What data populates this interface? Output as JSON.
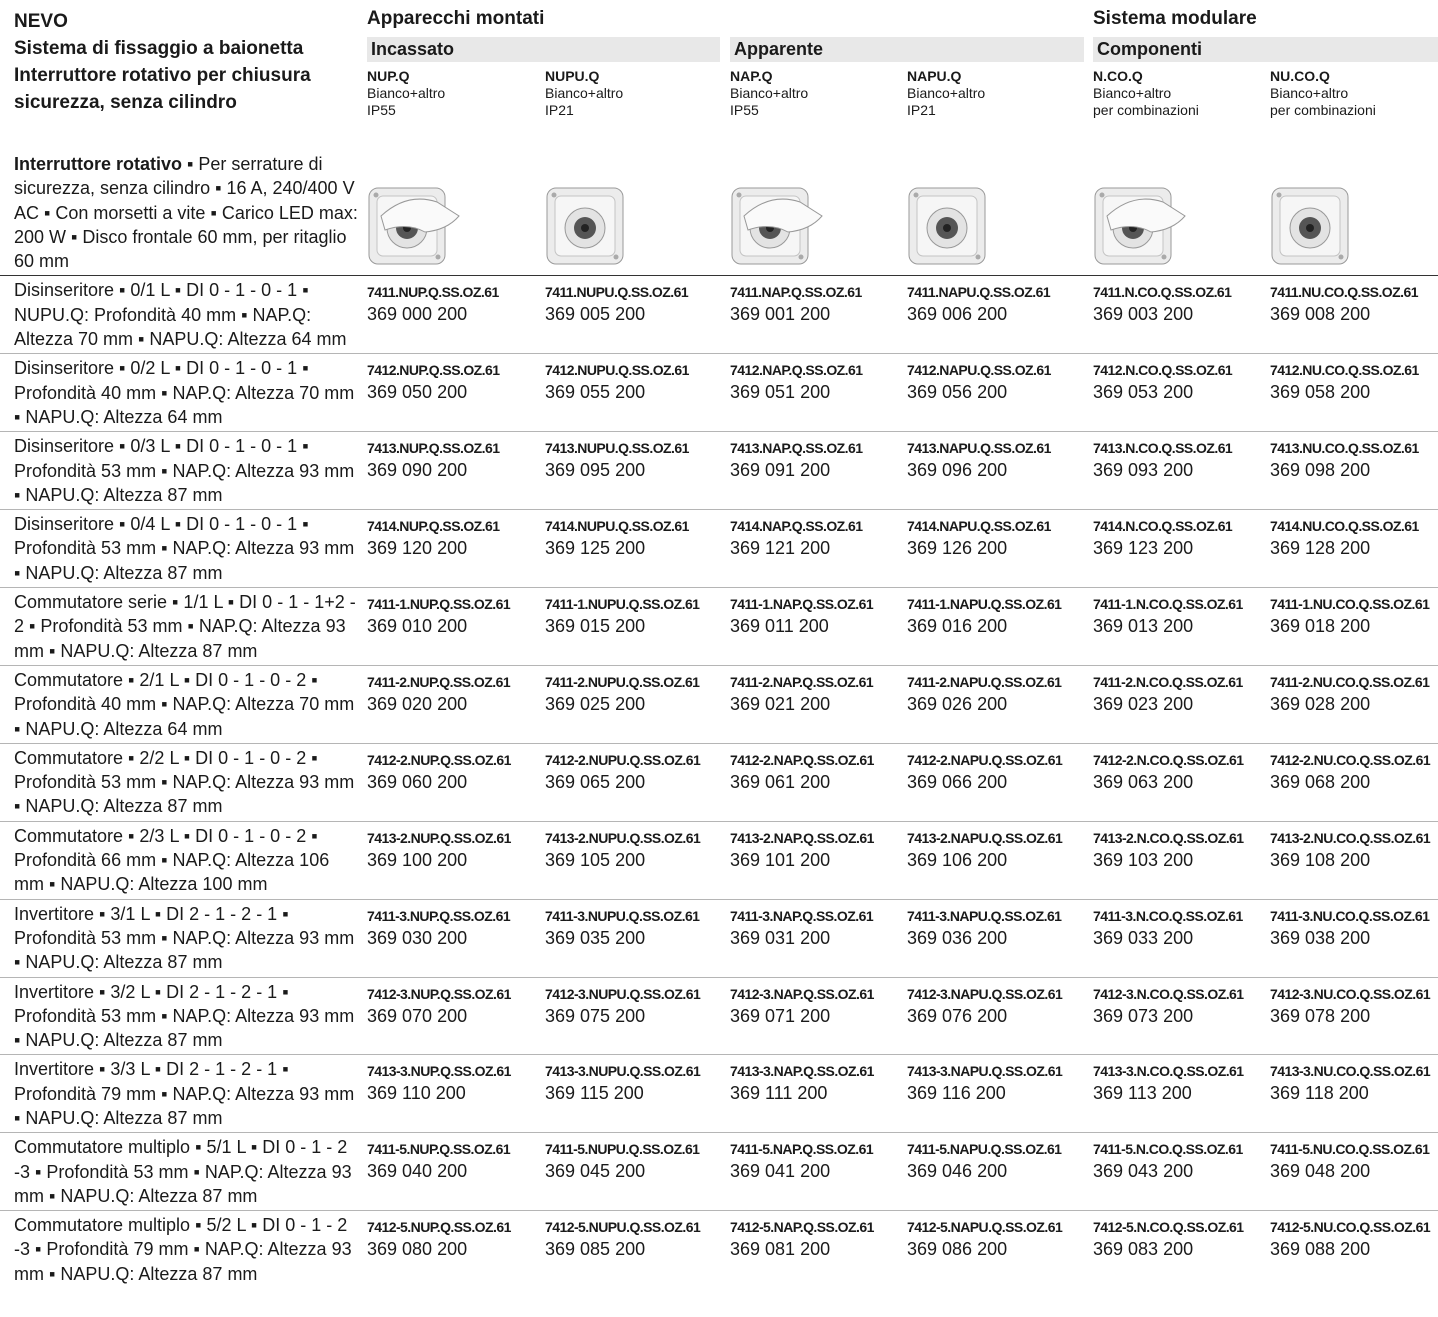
{
  "header": {
    "title": "NEVO",
    "subtitle_lines": [
      "Sistema di fissaggio a baionetta",
      "Interruttore rotativo per chiusura",
      "sicurezza, senza cilindro"
    ]
  },
  "groups": [
    {
      "title": "Apparecchi montati",
      "subgroups": [
        "Incassato",
        "Apparente"
      ]
    },
    {
      "title": "Sistema modulare",
      "subgroups": [
        "Componenti"
      ]
    }
  ],
  "columns": [
    {
      "name": "NUP.Q",
      "lines": [
        "Bianco+altro",
        "IP55"
      ]
    },
    {
      "name": "NUPU.Q",
      "lines": [
        "Bianco+altro",
        "IP21"
      ]
    },
    {
      "name": "NAP.Q",
      "lines": [
        "Bianco+altro",
        "IP55"
      ]
    },
    {
      "name": "NAPU.Q",
      "lines": [
        "Bianco+altro",
        "IP21"
      ]
    },
    {
      "name": "N.CO.Q",
      "lines": [
        "Bianco+altro",
        "per combinazioni"
      ]
    },
    {
      "name": "NU.CO.Q",
      "lines": [
        "Bianco+altro",
        "per combinazioni"
      ]
    }
  ],
  "intro": {
    "title": "Interruttore rotativo",
    "text": "▪ Per serrature di sicurezza, senza cilindro ▪ 16 A, 240/400 V AC ▪ Con morsetti a vite ▪ Carico LED max: 200 W ▪ Disco frontale 60 mm, per ritaglio 60 mm"
  },
  "rows": [
    {
      "description": "Disinseritore ▪ 0/1 L ▪ DI 0 - 1 - 0 - 1 ▪ NUPU.Q: Profondità 40 mm ▪ NAP.Q: Altezza 70 mm ▪ NAPU.Q: Altezza 64 mm",
      "items": [
        {
          "code": "7411.NUP.Q.SS.OZ.61",
          "number": "369 000 200"
        },
        {
          "code": "7411.NUPU.Q.SS.OZ.61",
          "number": "369 005 200"
        },
        {
          "code": "7411.NAP.Q.SS.OZ.61",
          "number": "369 001 200"
        },
        {
          "code": "7411.NAPU.Q.SS.OZ.61",
          "number": "369 006 200"
        },
        {
          "code": "7411.N.CO.Q.SS.OZ.61",
          "number": "369 003 200"
        },
        {
          "code": "7411.NU.CO.Q.SS.OZ.61",
          "number": "369 008 200"
        }
      ]
    },
    {
      "description": "Disinseritore ▪ 0/2 L ▪ DI 0 - 1 - 0 - 1 ▪ Profondità 40 mm ▪ NAP.Q: Altezza 70 mm ▪ NAPU.Q: Altezza 64 mm",
      "items": [
        {
          "code": "7412.NUP.Q.SS.OZ.61",
          "number": "369 050 200"
        },
        {
          "code": "7412.NUPU.Q.SS.OZ.61",
          "number": "369 055 200"
        },
        {
          "code": "7412.NAP.Q.SS.OZ.61",
          "number": "369 051 200"
        },
        {
          "code": "7412.NAPU.Q.SS.OZ.61",
          "number": "369 056 200"
        },
        {
          "code": "7412.N.CO.Q.SS.OZ.61",
          "number": "369 053 200"
        },
        {
          "code": "7412.NU.CO.Q.SS.OZ.61",
          "number": "369 058 200"
        }
      ]
    },
    {
      "description": "Disinseritore ▪ 0/3 L ▪ DI 0 - 1 - 0 - 1 ▪ Profondità 53 mm ▪ NAP.Q: Altezza 93 mm ▪ NAPU.Q: Altezza 87 mm",
      "items": [
        {
          "code": "7413.NUP.Q.SS.OZ.61",
          "number": "369 090 200"
        },
        {
          "code": "7413.NUPU.Q.SS.OZ.61",
          "number": "369 095 200"
        },
        {
          "code": "7413.NAP.Q.SS.OZ.61",
          "number": "369 091 200"
        },
        {
          "code": "7413.NAPU.Q.SS.OZ.61",
          "number": "369 096 200"
        },
        {
          "code": "7413.N.CO.Q.SS.OZ.61",
          "number": "369 093 200"
        },
        {
          "code": "7413.NU.CO.Q.SS.OZ.61",
          "number": "369 098 200"
        }
      ]
    },
    {
      "description": "Disinseritore ▪ 0/4 L ▪ DI 0 - 1 - 0 - 1 ▪ Profondità 53 mm ▪ NAP.Q: Altezza 93 mm ▪ NAPU.Q: Altezza 87 mm",
      "items": [
        {
          "code": "7414.NUP.Q.SS.OZ.61",
          "number": "369 120 200"
        },
        {
          "code": "7414.NUPU.Q.SS.OZ.61",
          "number": "369 125 200"
        },
        {
          "code": "7414.NAP.Q.SS.OZ.61",
          "number": "369 121 200"
        },
        {
          "code": "7414.NAPU.Q.SS.OZ.61",
          "number": "369 126 200"
        },
        {
          "code": "7414.N.CO.Q.SS.OZ.61",
          "number": "369 123 200"
        },
        {
          "code": "7414.NU.CO.Q.SS.OZ.61",
          "number": "369 128 200"
        }
      ]
    },
    {
      "description": "Commutatore serie ▪ 1/1 L ▪ DI 0 - 1 - 1+2 - 2 ▪ Profondità 53 mm ▪ NAP.Q: Altezza 93 mm ▪ NAPU.Q: Altezza 87 mm",
      "items": [
        {
          "code": "7411-1.NUP.Q.SS.OZ.61",
          "number": "369 010 200"
        },
        {
          "code": "7411-1.NUPU.Q.SS.OZ.61",
          "number": "369 015 200"
        },
        {
          "code": "7411-1.NAP.Q.SS.OZ.61",
          "number": "369 011 200"
        },
        {
          "code": "7411-1.NAPU.Q.SS.OZ.61",
          "number": "369 016 200"
        },
        {
          "code": "7411-1.N.CO.Q.SS.OZ.61",
          "number": "369 013 200"
        },
        {
          "code": "7411-1.NU.CO.Q.SS.OZ.61",
          "number": "369 018 200"
        }
      ]
    },
    {
      "description": "Commutatore ▪ 2/1 L ▪ DI 0 - 1 - 0 - 2 ▪ Profondità 40 mm ▪ NAP.Q: Altezza 70 mm ▪ NAPU.Q: Altezza 64 mm",
      "items": [
        {
          "code": "7411-2.NUP.Q.SS.OZ.61",
          "number": "369 020 200"
        },
        {
          "code": "7411-2.NUPU.Q.SS.OZ.61",
          "number": "369 025 200"
        },
        {
          "code": "7411-2.NAP.Q.SS.OZ.61",
          "number": "369 021 200"
        },
        {
          "code": "7411-2.NAPU.Q.SS.OZ.61",
          "number": "369 026 200"
        },
        {
          "code": "7411-2.N.CO.Q.SS.OZ.61",
          "number": "369 023 200"
        },
        {
          "code": "7411-2.NU.CO.Q.SS.OZ.61",
          "number": "369 028 200"
        }
      ]
    },
    {
      "description": "Commutatore ▪ 2/2 L ▪ DI 0 - 1 - 0 - 2 ▪ Profondità 53 mm ▪ NAP.Q: Altezza 93 mm ▪ NAPU.Q: Altezza 87 mm",
      "items": [
        {
          "code": "7412-2.NUP.Q.SS.OZ.61",
          "number": "369 060 200"
        },
        {
          "code": "7412-2.NUPU.Q.SS.OZ.61",
          "number": "369 065 200"
        },
        {
          "code": "7412-2.NAP.Q.SS.OZ.61",
          "number": "369 061 200"
        },
        {
          "code": "7412-2.NAPU.Q.SS.OZ.61",
          "number": "369 066 200"
        },
        {
          "code": "7412-2.N.CO.Q.SS.OZ.61",
          "number": "369 063 200"
        },
        {
          "code": "7412-2.NU.CO.Q.SS.OZ.61",
          "number": "369 068 200"
        }
      ]
    },
    {
      "description": "Commutatore ▪ 2/3 L ▪ DI 0 - 1 - 0 - 2 ▪ Profondità 66 mm ▪ NAP.Q: Altezza 106 mm ▪ NAPU.Q: Altezza 100 mm",
      "items": [
        {
          "code": "7413-2.NUP.Q.SS.OZ.61",
          "number": "369 100 200"
        },
        {
          "code": "7413-2.NUPU.Q.SS.OZ.61",
          "number": "369 105 200"
        },
        {
          "code": "7413-2.NAP.Q.SS.OZ.61",
          "number": "369 101 200"
        },
        {
          "code": "7413-2.NAPU.Q.SS.OZ.61",
          "number": "369 106 200"
        },
        {
          "code": "7413-2.N.CO.Q.SS.OZ.61",
          "number": "369 103 200"
        },
        {
          "code": "7413-2.NU.CO.Q.SS.OZ.61",
          "number": "369 108 200"
        }
      ]
    },
    {
      "description": "Invertitore ▪ 3/1 L ▪ DI 2 - 1 - 2 - 1 ▪ Profondità 53 mm ▪ NAP.Q: Altezza 93 mm ▪ NAPU.Q: Altezza 87 mm",
      "items": [
        {
          "code": "7411-3.NUP.Q.SS.OZ.61",
          "number": "369 030 200"
        },
        {
          "code": "7411-3.NUPU.Q.SS.OZ.61",
          "number": "369 035 200"
        },
        {
          "code": "7411-3.NAP.Q.SS.OZ.61",
          "number": "369 031 200"
        },
        {
          "code": "7411-3.NAPU.Q.SS.OZ.61",
          "number": "369 036 200"
        },
        {
          "code": "7411-3.N.CO.Q.SS.OZ.61",
          "number": "369 033 200"
        },
        {
          "code": "7411-3.NU.CO.Q.SS.OZ.61",
          "number": "369 038 200"
        }
      ]
    },
    {
      "description": "Invertitore ▪ 3/2 L ▪ DI 2 - 1 - 2 - 1 ▪ Profondità 53 mm ▪ NAP.Q: Altezza 93 mm ▪ NAPU.Q: Altezza 87 mm",
      "items": [
        {
          "code": "7412-3.NUP.Q.SS.OZ.61",
          "number": "369 070 200"
        },
        {
          "code": "7412-3.NUPU.Q.SS.OZ.61",
          "number": "369 075 200"
        },
        {
          "code": "7412-3.NAP.Q.SS.OZ.61",
          "number": "369 071 200"
        },
        {
          "code": "7412-3.NAPU.Q.SS.OZ.61",
          "number": "369 076 200"
        },
        {
          "code": "7412-3.N.CO.Q.SS.OZ.61",
          "number": "369 073 200"
        },
        {
          "code": "7412-3.NU.CO.Q.SS.OZ.61",
          "number": "369 078 200"
        }
      ]
    },
    {
      "description": "Invertitore ▪ 3/3 L ▪ DI 2 - 1 - 2 - 1 ▪ Profondità 79 mm ▪ NAP.Q: Altezza 93 mm ▪ NAPU.Q: Altezza 87 mm",
      "items": [
        {
          "code": "7413-3.NUP.Q.SS.OZ.61",
          "number": "369 110 200"
        },
        {
          "code": "7413-3.NUPU.Q.SS.OZ.61",
          "number": "369 115 200"
        },
        {
          "code": "7413-3.NAP.Q.SS.OZ.61",
          "number": "369 111 200"
        },
        {
          "code": "7413-3.NAPU.Q.SS.OZ.61",
          "number": "369 116 200"
        },
        {
          "code": "7413-3.N.CO.Q.SS.OZ.61",
          "number": "369 113 200"
        },
        {
          "code": "7413-3.NU.CO.Q.SS.OZ.61",
          "number": "369 118 200"
        }
      ]
    },
    {
      "description": "Commutatore multiplo ▪ 5/1 L ▪ DI 0 - 1 - 2 -3 ▪ Profondità 53 mm ▪ NAP.Q: Altezza 93 mm ▪ NAPU.Q: Altezza 87 mm",
      "items": [
        {
          "code": "7411-5.NUP.Q.SS.OZ.61",
          "number": "369 040 200"
        },
        {
          "code": "7411-5.NUPU.Q.SS.OZ.61",
          "number": "369 045 200"
        },
        {
          "code": "7411-5.NAP.Q.SS.OZ.61",
          "number": "369 041 200"
        },
        {
          "code": "7411-5.NAPU.Q.SS.OZ.61",
          "number": "369 046 200"
        },
        {
          "code": "7411-5.N.CO.Q.SS.OZ.61",
          "number": "369 043 200"
        },
        {
          "code": "7411-5.NU.CO.Q.SS.OZ.61",
          "number": "369 048 200"
        }
      ]
    },
    {
      "description": "Commutatore multiplo ▪ 5/2 L ▪ DI 0 - 1 - 2 -3 ▪ Profondità 79 mm ▪ NAP.Q: Altezza 93 mm ▪ NAPU.Q: Altezza 87 mm",
      "items": [
        {
          "code": "7412-5.NUP.Q.SS.OZ.61",
          "number": "369 080 200"
        },
        {
          "code": "7412-5.NUPU.Q.SS.OZ.61",
          "number": "369 085 200"
        },
        {
          "code": "7412-5.NAP.Q.SS.OZ.61",
          "number": "369 081 200"
        },
        {
          "code": "7412-5.NAPU.Q.SS.OZ.61",
          "number": "369 086 200"
        },
        {
          "code": "7412-5.N.CO.Q.SS.OZ.61",
          "number": "369 083 200"
        },
        {
          "code": "7412-5.NU.CO.Q.SS.OZ.61",
          "number": "369 088 200"
        }
      ]
    }
  ]
}
